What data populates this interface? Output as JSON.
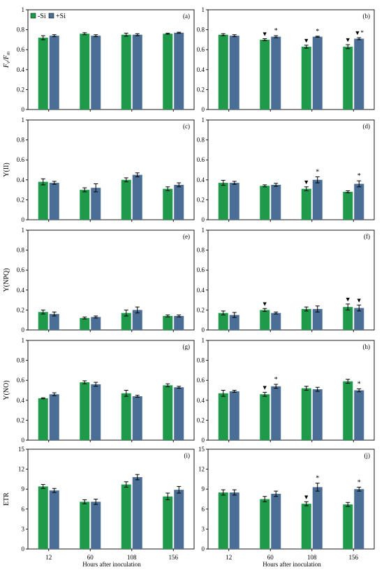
{
  "colors": {
    "minus_si": "#1e9a4a",
    "plus_si": "#4a6e96"
  },
  "legend": {
    "minus_si": "-Si",
    "plus_si": "+Si"
  },
  "xlabel": "Hours after inoculation",
  "chart_data": [
    {
      "type": "bar",
      "panel": "(a)",
      "ylabel": "Fv/Fm",
      "ylim": [
        0,
        1
      ],
      "yticks": [
        "0",
        "0.2",
        "0.4",
        "0.6",
        "0.8",
        "1"
      ],
      "categories": [
        "12",
        "60",
        "108",
        "156"
      ],
      "legend": "top-left",
      "series": [
        {
          "name": "-Si",
          "values": [
            0.72,
            0.76,
            0.75,
            0.76
          ],
          "errors": [
            0.02,
            0.01,
            0.015,
            0.005
          ]
        },
        {
          "name": "+Si",
          "values": [
            0.74,
            0.74,
            0.75,
            0.77
          ],
          "errors": [
            0.01,
            0.01,
            0.01,
            0.005
          ]
        }
      ],
      "markers": []
    },
    {
      "type": "bar",
      "panel": "(b)",
      "ylim": [
        0,
        1
      ],
      "yticks": [
        "0",
        "0.2",
        "0.4",
        "0.6",
        "0.8",
        "1"
      ],
      "categories": [
        "12",
        "60",
        "108",
        "156"
      ],
      "series": [
        {
          "name": "-Si",
          "values": [
            0.75,
            0.7,
            0.63,
            0.63
          ],
          "errors": [
            0.01,
            0.01,
            0.015,
            0.02
          ]
        },
        {
          "name": "+Si",
          "values": [
            0.74,
            0.73,
            0.73,
            0.71
          ],
          "errors": [
            0.01,
            0.01,
            0.005,
            0.01
          ]
        }
      ],
      "markers": [
        {
          "cat": 1,
          "series": 0,
          "mark": "▼"
        },
        {
          "cat": 1,
          "series": 1,
          "mark": "*"
        },
        {
          "cat": 2,
          "series": 0,
          "mark": "▼"
        },
        {
          "cat": 2,
          "series": 1,
          "mark": "*"
        },
        {
          "cat": 3,
          "series": 0,
          "mark": "▼"
        },
        {
          "cat": 3,
          "series": 1,
          "mark": "▼*"
        }
      ]
    },
    {
      "type": "bar",
      "panel": "(c)",
      "ylabel": "Y(II)",
      "ylim": [
        0,
        1
      ],
      "yticks": [
        "0",
        "0.2",
        "0.4",
        "0.6",
        "0.8",
        "1"
      ],
      "categories": [
        "12",
        "60",
        "108",
        "156"
      ],
      "series": [
        {
          "name": "-Si",
          "values": [
            0.38,
            0.3,
            0.4,
            0.31
          ],
          "errors": [
            0.03,
            0.02,
            0.02,
            0.02
          ]
        },
        {
          "name": "+Si",
          "values": [
            0.37,
            0.32,
            0.45,
            0.35
          ],
          "errors": [
            0.015,
            0.04,
            0.02,
            0.02
          ]
        }
      ],
      "markers": []
    },
    {
      "type": "bar",
      "panel": "(d)",
      "ylim": [
        0,
        1
      ],
      "yticks": [
        "0",
        "0.2",
        "0.4",
        "0.6",
        "0.8",
        "1"
      ],
      "categories": [
        "12",
        "60",
        "108",
        "156"
      ],
      "series": [
        {
          "name": "-Si",
          "values": [
            0.37,
            0.34,
            0.31,
            0.28
          ],
          "errors": [
            0.025,
            0.01,
            0.02,
            0.01
          ]
        },
        {
          "name": "+Si",
          "values": [
            0.37,
            0.35,
            0.4,
            0.36
          ],
          "errors": [
            0.015,
            0.015,
            0.03,
            0.03
          ]
        }
      ],
      "markers": [
        {
          "cat": 2,
          "series": 0,
          "mark": "▼"
        },
        {
          "cat": 2,
          "series": 1,
          "mark": "*"
        },
        {
          "cat": 3,
          "series": 1,
          "mark": "*"
        }
      ]
    },
    {
      "type": "bar",
      "panel": "(e)",
      "ylabel": "Y(NPQ)",
      "ylim": [
        0,
        1
      ],
      "yticks": [
        "0",
        "0.2",
        "0.4",
        "0.6",
        "0.8",
        "1"
      ],
      "categories": [
        "12",
        "60",
        "108",
        "156"
      ],
      "series": [
        {
          "name": "-Si",
          "values": [
            0.18,
            0.12,
            0.17,
            0.14
          ],
          "errors": [
            0.02,
            0.01,
            0.03,
            0.01
          ]
        },
        {
          "name": "+Si",
          "values": [
            0.16,
            0.13,
            0.2,
            0.14
          ],
          "errors": [
            0.02,
            0.01,
            0.03,
            0.01
          ]
        }
      ],
      "markers": []
    },
    {
      "type": "bar",
      "panel": "(f)",
      "ylim": [
        0,
        1
      ],
      "yticks": [
        "0",
        "0.2",
        "0.4",
        "0.6",
        "0.8",
        "1"
      ],
      "categories": [
        "12",
        "60",
        "108",
        "156"
      ],
      "series": [
        {
          "name": "-Si",
          "values": [
            0.17,
            0.2,
            0.21,
            0.23
          ],
          "errors": [
            0.02,
            0.015,
            0.02,
            0.03
          ]
        },
        {
          "name": "+Si",
          "values": [
            0.15,
            0.17,
            0.21,
            0.22
          ],
          "errors": [
            0.025,
            0.01,
            0.03,
            0.03
          ]
        }
      ],
      "markers": [
        {
          "cat": 1,
          "series": 0,
          "mark": "▼"
        },
        {
          "cat": 3,
          "series": 0,
          "mark": "▼"
        },
        {
          "cat": 3,
          "series": 1,
          "mark": "▼"
        }
      ]
    },
    {
      "type": "bar",
      "panel": "(g)",
      "ylabel": "Y(NO)",
      "ylim": [
        0,
        1
      ],
      "yticks": [
        "0",
        "0.2",
        "0.4",
        "0.6",
        "0.8",
        "1"
      ],
      "categories": [
        "12",
        "60",
        "108",
        "156"
      ],
      "series": [
        {
          "name": "-Si",
          "values": [
            0.42,
            0.58,
            0.47,
            0.55
          ],
          "errors": [
            0.005,
            0.015,
            0.03,
            0.015
          ]
        },
        {
          "name": "+Si",
          "values": [
            0.46,
            0.56,
            0.44,
            0.53
          ],
          "errors": [
            0.015,
            0.02,
            0.01,
            0.01
          ]
        }
      ],
      "markers": []
    },
    {
      "type": "bar",
      "panel": "(h)",
      "ylim": [
        0,
        1
      ],
      "yticks": [
        "0",
        "0.2",
        "0.4",
        "0.6",
        "0.8",
        "1"
      ],
      "categories": [
        "12",
        "60",
        "108",
        "156"
      ],
      "series": [
        {
          "name": "-Si",
          "values": [
            0.47,
            0.46,
            0.52,
            0.59
          ],
          "errors": [
            0.03,
            0.02,
            0.02,
            0.02
          ]
        },
        {
          "name": "+Si",
          "values": [
            0.49,
            0.54,
            0.51,
            0.5
          ],
          "errors": [
            0.01,
            0.02,
            0.02,
            0.015
          ]
        }
      ],
      "markers": [
        {
          "cat": 1,
          "series": 0,
          "mark": "▼"
        },
        {
          "cat": 1,
          "series": 1,
          "mark": "*"
        },
        {
          "cat": 3,
          "series": 1,
          "mark": "*"
        }
      ]
    },
    {
      "type": "bar",
      "panel": "(i)",
      "ylabel": "ETR",
      "ylim": [
        0,
        15
      ],
      "yticks": [
        "0",
        "3",
        "6",
        "9",
        "12",
        "15"
      ],
      "categories": [
        "12",
        "60",
        "108",
        "156"
      ],
      "series": [
        {
          "name": "-Si",
          "values": [
            9.4,
            7.1,
            9.7,
            7.9
          ],
          "errors": [
            0.3,
            0.3,
            0.4,
            0.5
          ]
        },
        {
          "name": "+Si",
          "values": [
            8.8,
            7.1,
            10.8,
            8.9
          ],
          "errors": [
            0.3,
            0.4,
            0.4,
            0.5
          ]
        }
      ],
      "markers": []
    },
    {
      "type": "bar",
      "panel": "(j)",
      "ylim": [
        0,
        15
      ],
      "yticks": [
        "0",
        "3",
        "6",
        "9",
        "12",
        "15"
      ],
      "categories": [
        "12",
        "60",
        "108",
        "156"
      ],
      "series": [
        {
          "name": "-Si",
          "values": [
            8.5,
            7.5,
            6.8,
            6.7
          ],
          "errors": [
            0.4,
            0.4,
            0.3,
            0.3
          ]
        },
        {
          "name": "+Si",
          "values": [
            8.5,
            8.3,
            9.3,
            9.0
          ],
          "errors": [
            0.4,
            0.4,
            0.6,
            0.3
          ]
        }
      ],
      "markers": [
        {
          "cat": 2,
          "series": 0,
          "mark": "▼"
        },
        {
          "cat": 2,
          "series": 1,
          "mark": "*"
        },
        {
          "cat": 3,
          "series": 1,
          "mark": "*"
        }
      ]
    }
  ]
}
